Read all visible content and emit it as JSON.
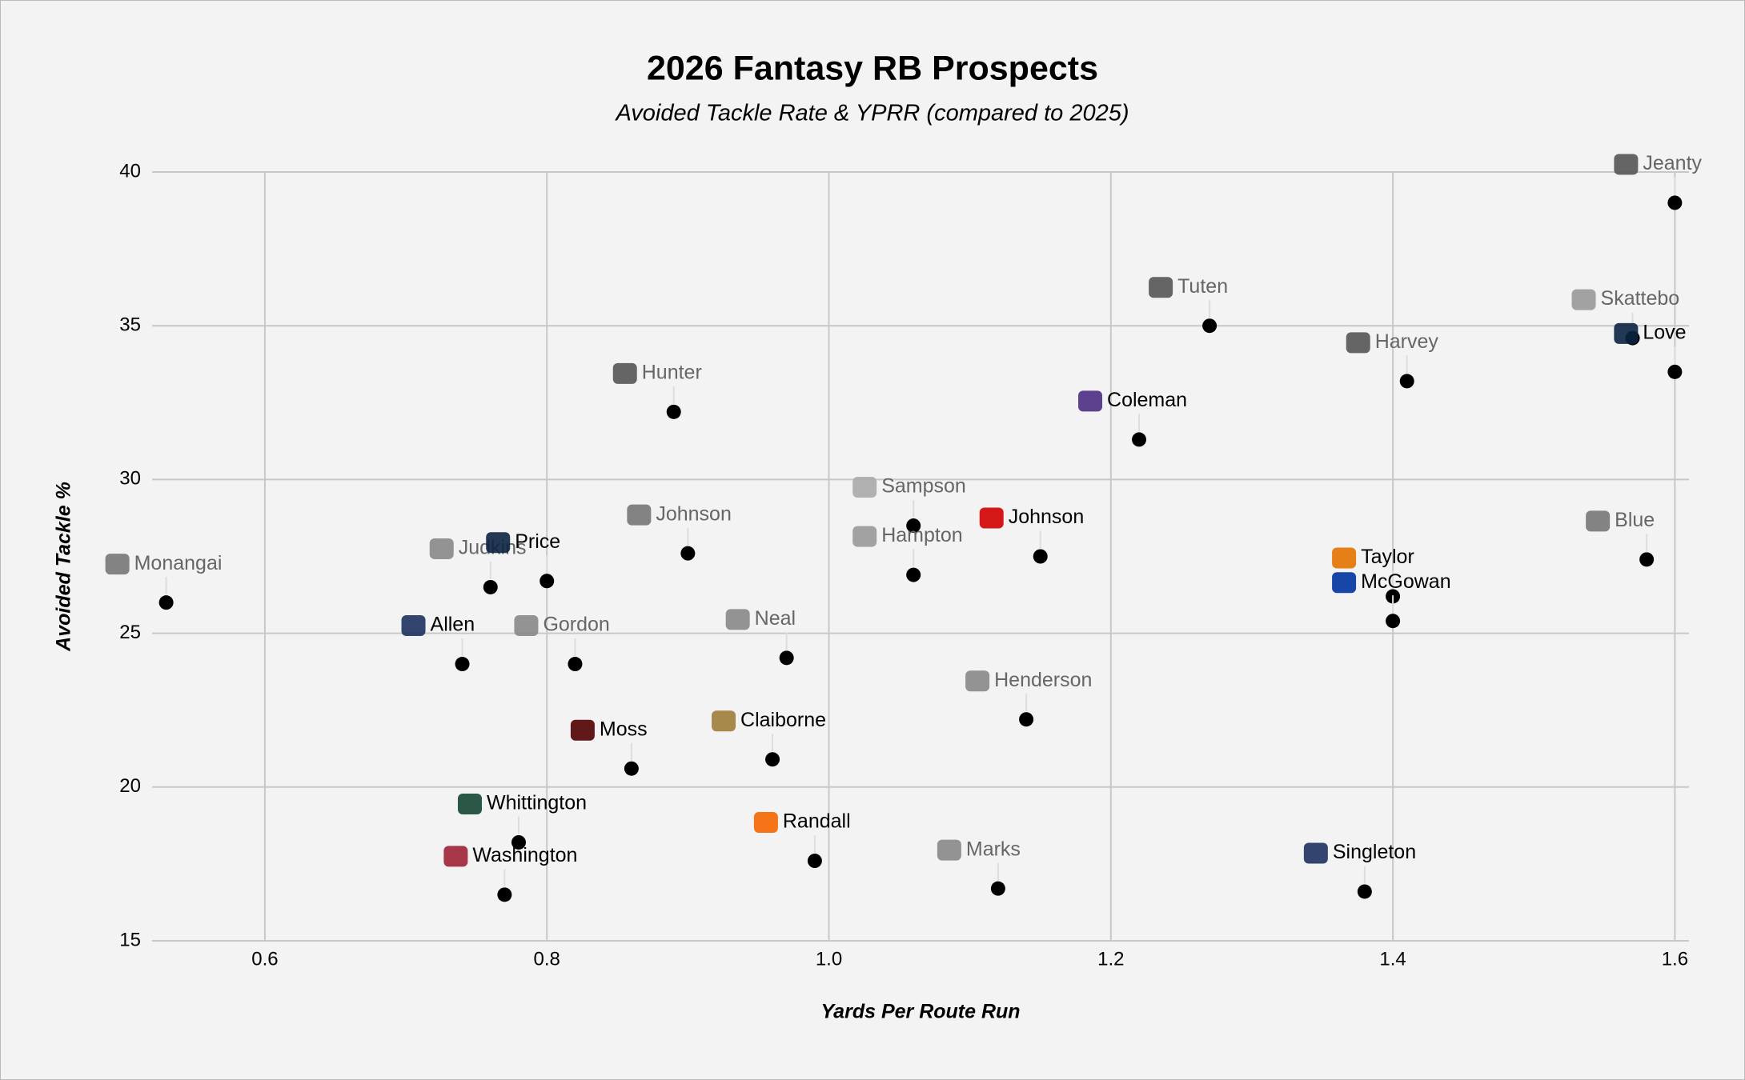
{
  "chart_data": {
    "type": "scatter",
    "title": "2026 Fantasy RB Prospects",
    "subtitle": "Avoided Tackle Rate & YPRR (compared to 2025)",
    "x_label": "Yards Per Route Run",
    "y_label": "Avoided Tackle %",
    "xlim": [
      0.52,
      1.61
    ],
    "ylim": [
      15,
      40
    ],
    "xticks": [
      0.6,
      0.8,
      {
        "value": 1,
        "label": "1.0"
      },
      1.2,
      1.4,
      1.6
    ],
    "yticks": [
      15,
      20,
      25,
      30,
      35,
      40
    ],
    "grid": true,
    "color": "#000000",
    "labels": [
      "Monangai",
      "Judkins",
      "Price",
      "Allen",
      "Gordon",
      "Hunter",
      "Johnson",
      "Neal",
      "Moss",
      "Claiborne",
      "Whittington",
      "Washington",
      "Randall",
      "Sampson",
      "Hampton",
      "Johnson",
      "Henderson",
      "Marks",
      "Coleman",
      "Tuten",
      "Harvey",
      "Taylor",
      "McGowan",
      "Singleton",
      "Jeanty",
      "Skattebo",
      "Love",
      "Blue"
    ],
    "x": [
      0.53,
      0.76,
      0.8,
      0.74,
      0.82,
      0.89,
      0.9,
      0.97,
      0.86,
      0.96,
      0.78,
      0.77,
      0.99,
      1.06,
      1.06,
      1.15,
      1.14,
      1.12,
      1.22,
      1.27,
      1.41,
      1.4,
      1.4,
      1.38,
      1.6,
      1.57,
      1.6,
      1.58
    ],
    "values": [
      26.0,
      26.5,
      26.7,
      24.0,
      24.0,
      32.2,
      27.6,
      24.2,
      20.6,
      20.9,
      18.2,
      16.5,
      17.6,
      28.5,
      26.9,
      27.5,
      22.2,
      16.7,
      31.3,
      35.0,
      33.2,
      26.2,
      25.4,
      16.6,
      39.0,
      34.6,
      33.5,
      27.4
    ],
    "label_colors": [
      "#666666",
      "#666666",
      "#000000",
      "#000000",
      "#666666",
      "#666666",
      "#666666",
      "#666666",
      "#000000",
      "#000000",
      "#000000",
      "#000000",
      "#000000",
      "#666666",
      "#666666",
      "#000000",
      "#666666",
      "#666666",
      "#000000",
      "#666666",
      "#666666",
      "#000000",
      "#000000",
      "#000000",
      "#666666",
      "#666666",
      "#000000",
      "#666666"
    ],
    "logo_colors": [
      "#777777",
      "#888888",
      "#0c2340",
      "#1e3260",
      "#888888",
      "#555555",
      "#777777",
      "#888888",
      "#500000",
      "#9e7e38",
      "#154733",
      "#9d2235",
      "#f56600",
      "#aaaaaa",
      "#999999",
      "#d00000",
      "#888888",
      "#888888",
      "#4b2e83",
      "#555555",
      "#555555",
      "#e57200",
      "#0033a0",
      "#1e3260",
      "#555555",
      "#999999",
      "#0c2340",
      "#777777"
    ]
  }
}
